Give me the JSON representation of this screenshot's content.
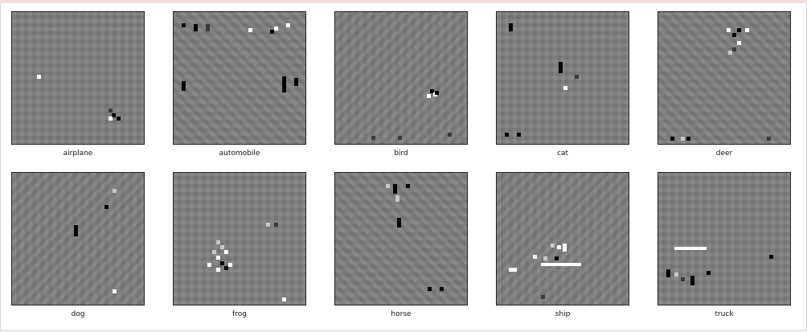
{
  "panels": [
    {
      "label": "airplane"
    },
    {
      "label": "automobile"
    },
    {
      "label": "bird"
    },
    {
      "label": "cat"
    },
    {
      "label": "deer"
    },
    {
      "label": "dog"
    },
    {
      "label": "frog"
    },
    {
      "label": "horse"
    },
    {
      "label": "ship"
    },
    {
      "label": "truck"
    }
  ]
}
